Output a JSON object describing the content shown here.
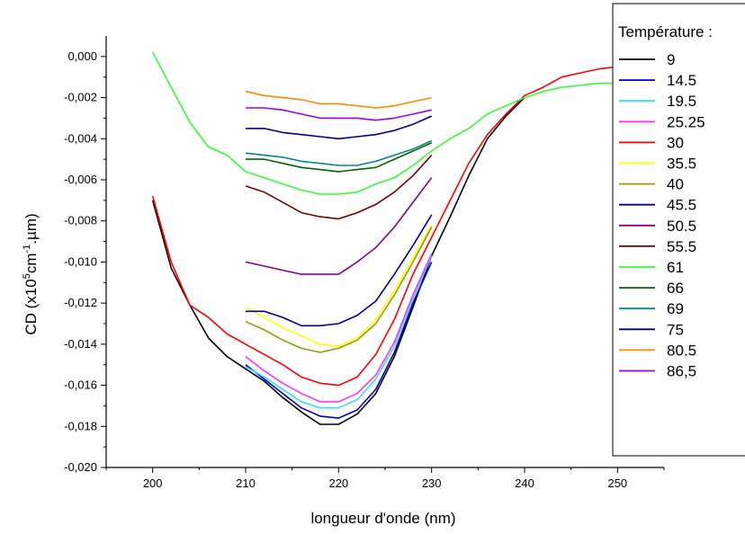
{
  "chart_data": {
    "type": "line",
    "title": "",
    "xlabel": "longueur d'onde (nm)",
    "ylabel": "CD (x10",
    "ylabel_sup1": "5",
    "ylabel_mid": "cm",
    "ylabel_sup2": "-1",
    "ylabel_end": ".µm)",
    "xlim": [
      195,
      255
    ],
    "ylim": [
      -0.02,
      0.001
    ],
    "x_ticks": [
      200,
      210,
      220,
      230,
      240,
      250
    ],
    "x_tick_labels": [
      "200",
      "210",
      "220",
      "230",
      "240",
      "250"
    ],
    "y_ticks": [
      0.0,
      -0.002,
      -0.004,
      -0.006,
      -0.008,
      -0.01,
      -0.012,
      -0.014,
      -0.016,
      -0.018,
      -0.02
    ],
    "y_tick_labels": [
      "0,000",
      "-0,002",
      "-0,004",
      "-0,006",
      "-0,008",
      "-0,010",
      "-0,012",
      "-0,014",
      "-0,016",
      "-0,018",
      "-0,020"
    ],
    "grid": false,
    "legend_title": "Température :",
    "legend_position": "right",
    "series": [
      {
        "name": "9",
        "color": "#000000",
        "x": [
          200,
          202,
          204,
          206,
          208,
          210,
          212,
          214,
          216,
          218,
          220,
          222,
          224,
          226,
          228,
          230,
          232,
          234,
          236,
          238,
          240
        ],
        "y": [
          -0.007,
          -0.0103,
          -0.0121,
          -0.0137,
          -0.0146,
          -0.0152,
          -0.0158,
          -0.0166,
          -0.0173,
          -0.0179,
          -0.0179,
          -0.0174,
          -0.0164,
          -0.0146,
          -0.0122,
          -0.0097,
          -0.0078,
          -0.0058,
          -0.004,
          -0.0029,
          -0.002
        ]
      },
      {
        "name": "14.5",
        "color": "#0000cc",
        "x": [
          210,
          212,
          214,
          216,
          218,
          220,
          222,
          224,
          226,
          228,
          230
        ],
        "y": [
          -0.015,
          -0.0157,
          -0.0164,
          -0.0171,
          -0.0175,
          -0.0176,
          -0.0172,
          -0.0162,
          -0.0144,
          -0.012,
          -0.01
        ]
      },
      {
        "name": "19.5",
        "color": "#33ddff",
        "x": [
          210,
          212,
          214,
          216,
          218,
          220,
          222,
          224,
          226,
          228,
          230
        ],
        "y": [
          -0.0151,
          -0.0156,
          -0.0162,
          -0.0168,
          -0.0171,
          -0.0171,
          -0.0167,
          -0.0157,
          -0.0141,
          -0.0118,
          -0.0097
        ]
      },
      {
        "name": "25.25",
        "color": "#ff33ff",
        "x": [
          210,
          212,
          214,
          216,
          218,
          220,
          222,
          224,
          226,
          228,
          230
        ],
        "y": [
          -0.0146,
          -0.0153,
          -0.0159,
          -0.0164,
          -0.0168,
          -0.0168,
          -0.0164,
          -0.0155,
          -0.0139,
          -0.0116,
          -0.0096
        ]
      },
      {
        "name": "30",
        "color": "#ff0000",
        "x": [
          200,
          202,
          204,
          206,
          208,
          210,
          212,
          214,
          216,
          218,
          220,
          222,
          224,
          226,
          228,
          230,
          232,
          234,
          236,
          238,
          240,
          242,
          244,
          246,
          248,
          250,
          252
        ],
        "y": [
          -0.0068,
          -0.01,
          -0.0121,
          -0.0127,
          -0.0135,
          -0.014,
          -0.0145,
          -0.015,
          -0.0156,
          -0.0159,
          -0.016,
          -0.0156,
          -0.0145,
          -0.0128,
          -0.0106,
          -0.0088,
          -0.007,
          -0.0052,
          -0.0038,
          -0.0028,
          -0.0019,
          -0.0015,
          -0.001,
          -0.0008,
          -0.0006,
          -0.0005,
          -0.0004
        ]
      },
      {
        "name": "35.5",
        "color": "#ffff00",
        "x": [
          210,
          212,
          214,
          216,
          218,
          220,
          222,
          224,
          226,
          228,
          230
        ],
        "y": [
          -0.0122,
          -0.0127,
          -0.0132,
          -0.0136,
          -0.014,
          -0.0141,
          -0.0137,
          -0.0128,
          -0.0114,
          -0.0098,
          -0.0082
        ]
      },
      {
        "name": "40",
        "color": "#999900",
        "x": [
          210,
          212,
          214,
          216,
          218,
          220,
          222,
          224,
          226,
          228,
          230
        ],
        "y": [
          -0.0129,
          -0.0133,
          -0.0138,
          -0.0142,
          -0.0144,
          -0.0142,
          -0.0138,
          -0.013,
          -0.0116,
          -0.01,
          -0.0083
        ]
      },
      {
        "name": "45.5",
        "color": "#000099",
        "x": [
          210,
          212,
          214,
          216,
          218,
          220,
          222,
          224,
          226,
          228,
          230
        ],
        "y": [
          -0.0124,
          -0.0124,
          -0.0127,
          -0.0131,
          -0.0131,
          -0.013,
          -0.0126,
          -0.0119,
          -0.0106,
          -0.0092,
          -0.0077
        ]
      },
      {
        "name": "50.5",
        "color": "#880088",
        "x": [
          210,
          212,
          214,
          216,
          218,
          220,
          222,
          224,
          226,
          228,
          230
        ],
        "y": [
          -0.01,
          -0.0102,
          -0.0104,
          -0.0106,
          -0.0106,
          -0.0106,
          -0.01,
          -0.0093,
          -0.0083,
          -0.0071,
          -0.0059
        ]
      },
      {
        "name": "55.5",
        "color": "#770000",
        "x": [
          210,
          212,
          214,
          216,
          218,
          220,
          222,
          224,
          226,
          228,
          230
        ],
        "y": [
          -0.0063,
          -0.0066,
          -0.0071,
          -0.0076,
          -0.0078,
          -0.0079,
          -0.0076,
          -0.0072,
          -0.0066,
          -0.0058,
          -0.0048
        ]
      },
      {
        "name": "61",
        "color": "#33ff33",
        "x": [
          200,
          202,
          204,
          206,
          208,
          210,
          212,
          214,
          216,
          218,
          220,
          222,
          224,
          226,
          228,
          230,
          232,
          234,
          236,
          238,
          240,
          242,
          244,
          246,
          248,
          250,
          252
        ],
        "y": [
          0.0002,
          -0.0015,
          -0.0032,
          -0.0044,
          -0.0048,
          -0.0056,
          -0.0059,
          -0.0062,
          -0.0065,
          -0.0067,
          -0.0067,
          -0.0066,
          -0.0062,
          -0.0059,
          -0.0053,
          -0.0046,
          -0.004,
          -0.0035,
          -0.0028,
          -0.0024,
          -0.002,
          -0.0017,
          -0.0015,
          -0.0014,
          -0.0013,
          -0.0013,
          -0.0013
        ]
      },
      {
        "name": "66",
        "color": "#006600",
        "x": [
          210,
          212,
          214,
          216,
          218,
          220,
          222,
          224,
          226,
          228,
          230
        ],
        "y": [
          -0.005,
          -0.005,
          -0.0052,
          -0.0054,
          -0.0055,
          -0.0056,
          -0.0055,
          -0.0054,
          -0.005,
          -0.0046,
          -0.0042
        ]
      },
      {
        "name": "69",
        "color": "#008888",
        "x": [
          210,
          212,
          214,
          216,
          218,
          220,
          222,
          224,
          226,
          228,
          230
        ],
        "y": [
          -0.0047,
          -0.0048,
          -0.0049,
          -0.0051,
          -0.0052,
          -0.0053,
          -0.0053,
          -0.0051,
          -0.0048,
          -0.0045,
          -0.0041
        ]
      },
      {
        "name": "75",
        "color": "#000088",
        "x": [
          210,
          212,
          214,
          216,
          218,
          220,
          222,
          224,
          226,
          228,
          230
        ],
        "y": [
          -0.0035,
          -0.0035,
          -0.0037,
          -0.0038,
          -0.0039,
          -0.004,
          -0.0039,
          -0.0038,
          -0.0036,
          -0.0033,
          -0.0029
        ]
      },
      {
        "name": "80.5",
        "color": "#ff8800",
        "x": [
          210,
          212,
          214,
          216,
          218,
          220,
          222,
          224,
          226,
          228,
          230
        ],
        "y": [
          -0.0017,
          -0.0019,
          -0.002,
          -0.0021,
          -0.0023,
          -0.0023,
          -0.0024,
          -0.0025,
          -0.0024,
          -0.0022,
          -0.002
        ]
      },
      {
        "name": "86,5",
        "color": "#9900ff",
        "x": [
          210,
          212,
          214,
          216,
          218,
          220,
          222,
          224,
          226,
          228,
          230
        ],
        "y": [
          -0.0025,
          -0.0025,
          -0.0026,
          -0.0028,
          -0.003,
          -0.003,
          -0.003,
          -0.0031,
          -0.003,
          -0.0028,
          -0.0026
        ]
      }
    ]
  }
}
